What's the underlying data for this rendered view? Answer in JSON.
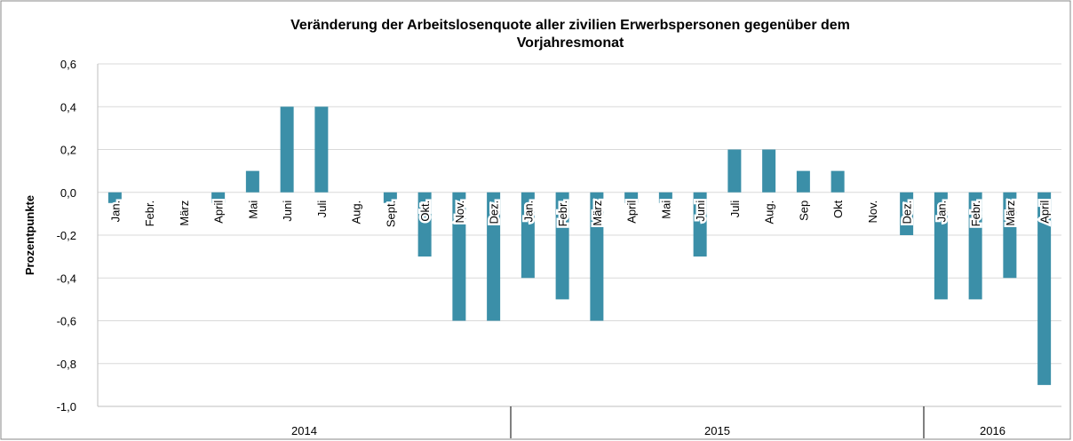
{
  "chart_data": {
    "type": "bar",
    "title": [
      "Veränderung der Arbeitslosenquote aller zivilien Erwerbspersonen gegenüber dem",
      "Vorjahresmonat"
    ],
    "y_label": "Prozentpunkte",
    "color": "#3b8fa8",
    "grid": true,
    "ylim": [
      -1.0,
      0.6
    ],
    "yticks": [
      {
        "value": -1.0,
        "label": "-1,0"
      },
      {
        "value": -0.8,
        "label": "-0,8"
      },
      {
        "value": -0.6,
        "label": "-0,6"
      },
      {
        "value": -0.4,
        "label": "-0,4"
      },
      {
        "value": -0.2,
        "label": "-0,2"
      },
      {
        "value": 0,
        "label": "0,0"
      },
      {
        "value": 0.2,
        "label": "0,2"
      },
      {
        "value": 0.4,
        "label": "0,4"
      },
      {
        "value": 0.6,
        "label": "0,6"
      }
    ],
    "groups": [
      {
        "label": "2014",
        "categories": [
          "Jan.",
          "Febr.",
          "März",
          "April",
          "Mai",
          "Juni",
          "Juli",
          "Aug.",
          "Sept.",
          "Okt.",
          "Nov.",
          "Dez."
        ],
        "values": [
          -0.05,
          0,
          0,
          -0.05,
          0.1,
          0.4,
          0.4,
          0,
          -0.05,
          -0.3,
          -0.6,
          -0.6
        ]
      },
      {
        "label": "2015",
        "categories": [
          "Jan.",
          "Febr.",
          "März",
          "April",
          "Mai",
          "Juni",
          "Juli",
          "Aug.",
          "Sep",
          "Okt",
          "Nov.",
          "Dez."
        ],
        "values": [
          -0.4,
          -0.5,
          -0.6,
          -0.05,
          -0.05,
          -0.3,
          0.2,
          0.2,
          0.1,
          0.1,
          0,
          -0.2
        ]
      },
      {
        "label": "2016",
        "categories": [
          "Jan.",
          "Febr.",
          "März",
          "April"
        ],
        "values": [
          -0.5,
          -0.5,
          -0.4,
          -0.9
        ]
      }
    ]
  }
}
